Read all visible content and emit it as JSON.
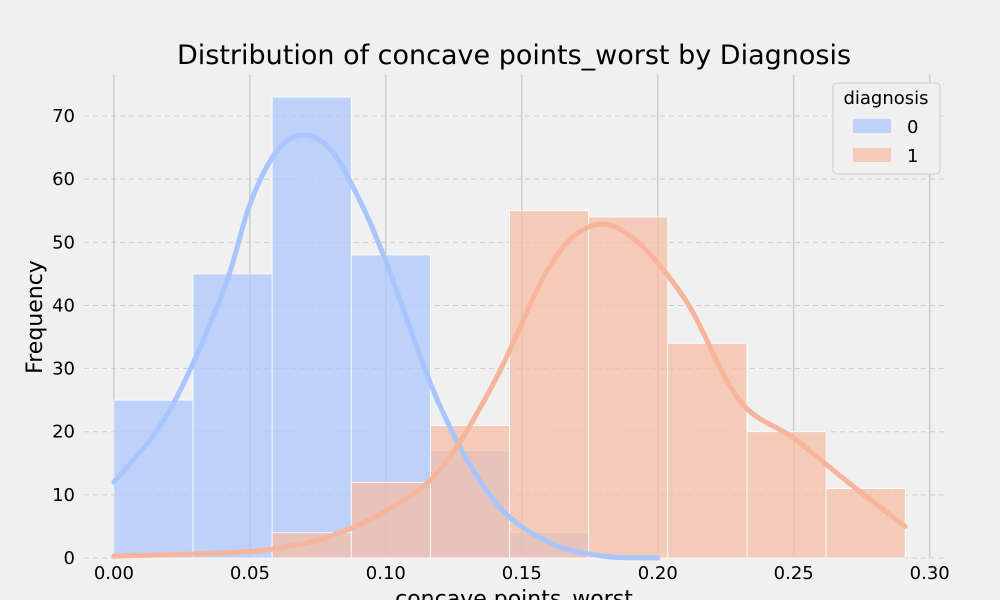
{
  "chart_data": {
    "type": "bar",
    "title": "Distribution of concave points_worst by Diagnosis",
    "xlabel": "concave points_worst",
    "ylabel": "Frequency",
    "xlim": [
      -0.011,
      0.306
    ],
    "ylim": [
      0,
      76.5
    ],
    "xticks": [
      0.0,
      0.05,
      0.1,
      0.15,
      0.2,
      0.25,
      0.3
    ],
    "xtick_labels": [
      "0.00",
      "0.05",
      "0.10",
      "0.15",
      "0.20",
      "0.25",
      "0.30"
    ],
    "yticks": [
      0,
      10,
      20,
      30,
      40,
      50,
      60,
      70
    ],
    "ytick_labels": [
      "0",
      "10",
      "20",
      "30",
      "40",
      "50",
      "60",
      "70"
    ],
    "grid": true,
    "legend": {
      "title": "diagnosis",
      "placement": "top-right"
    },
    "bin_edges": [
      0.0,
      0.0291,
      0.0582,
      0.0873,
      0.1164,
      0.1455,
      0.1746,
      0.2037,
      0.2328,
      0.2619,
      0.291
    ],
    "series": [
      {
        "name": "0",
        "color": "#aec7fb",
        "kde_color": "#a9c5ff",
        "counts": [
          25,
          45,
          73,
          48,
          17,
          4,
          0,
          0,
          0,
          0
        ],
        "kde": {
          "x": [
            0.0,
            0.02,
            0.04,
            0.05,
            0.06,
            0.07,
            0.08,
            0.09,
            0.1,
            0.12,
            0.14,
            0.16,
            0.18,
            0.2
          ],
          "y": [
            12,
            23,
            42,
            56,
            64.5,
            67,
            64.5,
            57,
            47,
            24,
            9,
            2.5,
            0.3,
            0
          ]
        }
      },
      {
        "name": "1",
        "color": "#f5bea5",
        "kde_color": "#f6b49b",
        "counts": [
          0,
          0,
          4,
          12,
          21,
          55,
          54,
          34,
          20,
          11
        ],
        "kde": {
          "x": [
            0.0,
            0.04,
            0.06,
            0.08,
            0.1,
            0.12,
            0.14,
            0.16,
            0.175,
            0.19,
            0.21,
            0.23,
            0.25,
            0.27,
            0.291
          ],
          "y": [
            0.3,
            0.8,
            1.5,
            3.5,
            7.5,
            14,
            28,
            46,
            52.5,
            51,
            41,
            25,
            19,
            12,
            5
          ]
        }
      }
    ]
  }
}
